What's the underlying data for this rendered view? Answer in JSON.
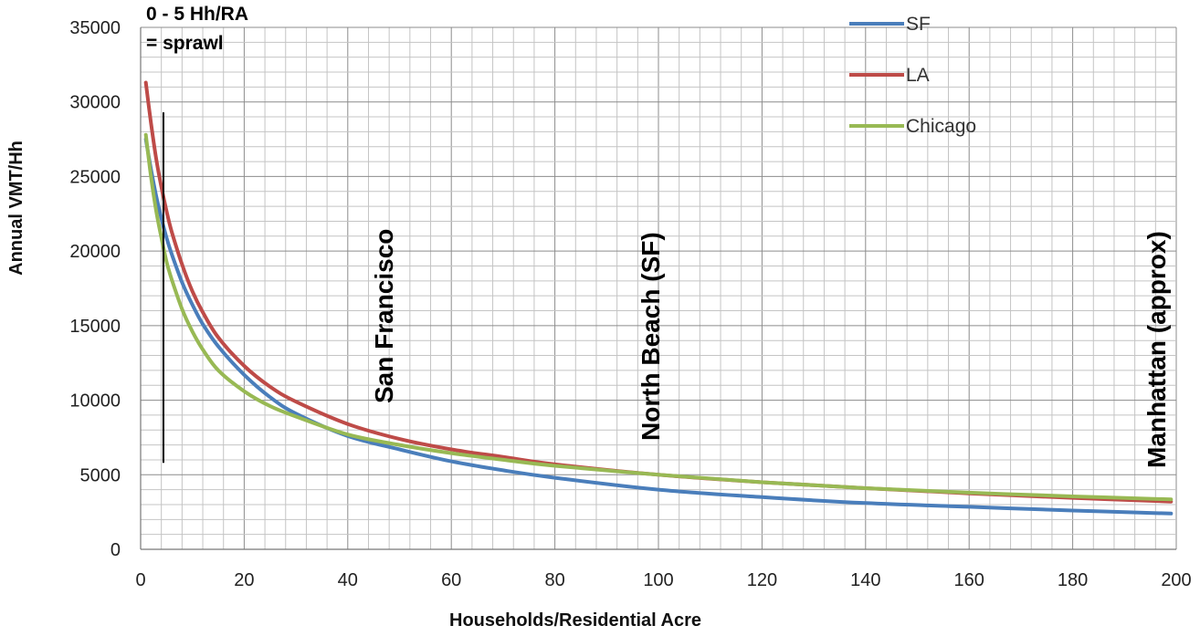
{
  "chart_data": {
    "type": "line",
    "title": "",
    "xlabel": "Households/Residential Acre",
    "ylabel": "Annual VMT/Hh",
    "xlim": [
      0,
      200
    ],
    "ylim": [
      0,
      35000
    ],
    "x_ticks": [
      0,
      20,
      40,
      60,
      80,
      100,
      120,
      140,
      160,
      180,
      200
    ],
    "y_ticks": [
      0,
      5000,
      10000,
      15000,
      20000,
      25000,
      30000,
      35000
    ],
    "grid": true,
    "legend_position": "top-right",
    "x": [
      1,
      2,
      3,
      4,
      5,
      6,
      8,
      10,
      12,
      15,
      20,
      25,
      30,
      40,
      50,
      60,
      70,
      80,
      100,
      120,
      140,
      160,
      180,
      199
    ],
    "series": [
      {
        "name": "SF",
        "color": "#4a7ebb",
        "values": [
          27500,
          25500,
          23700,
          22200,
          20900,
          19800,
          17900,
          16400,
          15100,
          13600,
          11700,
          10200,
          9100,
          7600,
          6700,
          5900,
          5300,
          4800,
          4000,
          3500,
          3100,
          2850,
          2600,
          2400
        ]
      },
      {
        "name": "LA",
        "color": "#be4b48",
        "values": [
          31300,
          28600,
          26200,
          24300,
          22700,
          21300,
          19100,
          17300,
          15900,
          14200,
          12300,
          10900,
          9900,
          8400,
          7400,
          6700,
          6200,
          5700,
          5000,
          4500,
          4100,
          3750,
          3450,
          3200
        ]
      },
      {
        "name": "Chicago",
        "color": "#98b954",
        "values": [
          27800,
          25000,
          22700,
          20900,
          19300,
          18100,
          16100,
          14600,
          13400,
          12000,
          10600,
          9600,
          8900,
          7700,
          7000,
          6450,
          6000,
          5600,
          5000,
          4500,
          4100,
          3800,
          3550,
          3350
        ]
      }
    ],
    "marker_line": {
      "x": 4.4,
      "y_from": 5800,
      "y_to": 29300
    },
    "annotations": {
      "sprawl_line1": "0 - 5 Hh/RA",
      "sprawl_line2": "= sprawl",
      "san_francisco": "San Francisco",
      "north_beach": "North Beach (SF)",
      "manhattan": "Manhattan (approx)"
    }
  }
}
